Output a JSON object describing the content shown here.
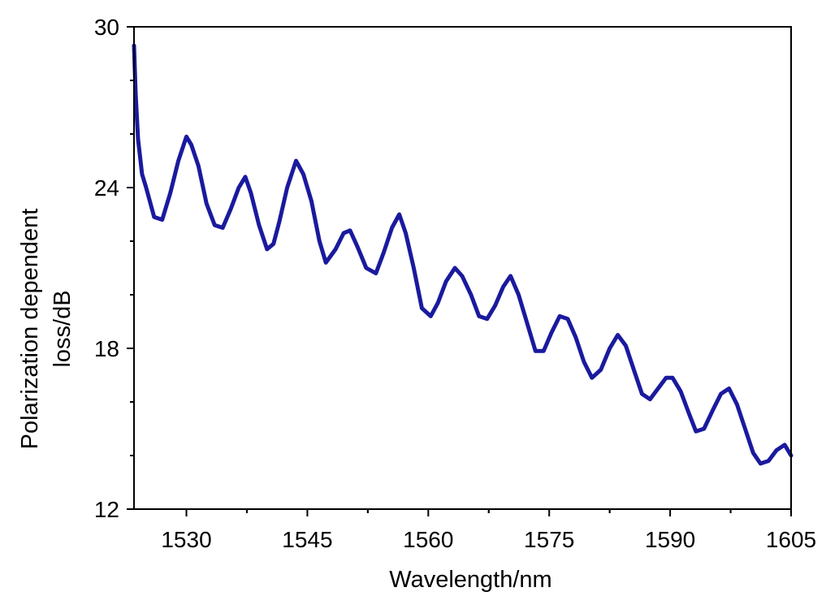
{
  "chart_data": {
    "type": "line",
    "title": "",
    "xlabel": "Wavelength/nm",
    "ylabel_lines": [
      "Polarization dependent",
      "loss/dB"
    ],
    "xlim": [
      1523.5,
      1605
    ],
    "ylim": [
      12,
      30
    ],
    "xticks": [
      1530,
      1545,
      1560,
      1575,
      1590,
      1605
    ],
    "xtick_labels": [
      "1530",
      "1545",
      "1560",
      "1575",
      "1590",
      "1605"
    ],
    "yticks": [
      12,
      18,
      24,
      30
    ],
    "ytick_labels": [
      "12",
      "18",
      "24",
      "30"
    ],
    "grid": false,
    "legend": "none",
    "colors": {
      "line": "#1a1a9e",
      "axis": "#000000"
    },
    "series": [
      {
        "x": [
          1523.5,
          1523.7,
          1524.0,
          1524.5,
          1525.0,
          1526.0,
          1527.0,
          1528.0,
          1529.0,
          1530.0,
          1530.6,
          1531.5,
          1532.5,
          1533.5,
          1534.5,
          1535.5,
          1536.5,
          1537.3,
          1538.0,
          1539.0,
          1540.0,
          1540.8,
          1541.5,
          1542.5,
          1543.6,
          1544.5,
          1545.5,
          1546.5,
          1547.3,
          1548.5,
          1549.5,
          1550.3,
          1551.2,
          1552.3,
          1553.5,
          1554.5,
          1555.5,
          1556.4,
          1557.2,
          1558.2,
          1559.2,
          1560.3,
          1561.2,
          1562.2,
          1563.3,
          1564.2,
          1565.3,
          1566.3,
          1567.3,
          1568.3,
          1569.3,
          1570.2,
          1571.2,
          1572.3,
          1573.3,
          1574.3,
          1575.3,
          1576.3,
          1577.3,
          1578.3,
          1579.3,
          1580.3,
          1581.4,
          1582.5,
          1583.5,
          1584.5,
          1585.5,
          1586.5,
          1587.5,
          1588.5,
          1589.5,
          1590.3,
          1591.3,
          1592.3,
          1593.2,
          1594.2,
          1595.3,
          1596.3,
          1597.3,
          1598.3,
          1599.3,
          1600.3,
          1601.2,
          1602.2,
          1603.2,
          1604.2,
          1605.0
        ],
        "y": [
          29.3,
          27.5,
          25.8,
          24.5,
          24.0,
          22.9,
          22.8,
          23.8,
          25.0,
          25.9,
          25.6,
          24.8,
          23.4,
          22.6,
          22.5,
          23.2,
          24.0,
          24.4,
          23.8,
          22.6,
          21.7,
          21.9,
          22.7,
          24.0,
          25.0,
          24.5,
          23.5,
          22.0,
          21.2,
          21.7,
          22.3,
          22.4,
          21.8,
          21.0,
          20.8,
          21.6,
          22.5,
          23.0,
          22.3,
          21.0,
          19.5,
          19.2,
          19.7,
          20.5,
          21.0,
          20.7,
          20.0,
          19.2,
          19.1,
          19.6,
          20.3,
          20.7,
          20.0,
          18.9,
          17.9,
          17.9,
          18.6,
          19.2,
          19.1,
          18.4,
          17.5,
          16.9,
          17.2,
          18.0,
          18.5,
          18.1,
          17.2,
          16.3,
          16.1,
          16.5,
          16.9,
          16.9,
          16.4,
          15.6,
          14.9,
          15.0,
          15.7,
          16.3,
          16.5,
          15.9,
          15.0,
          14.1,
          13.7,
          13.8,
          14.2,
          14.4,
          14.0
        ]
      }
    ]
  }
}
